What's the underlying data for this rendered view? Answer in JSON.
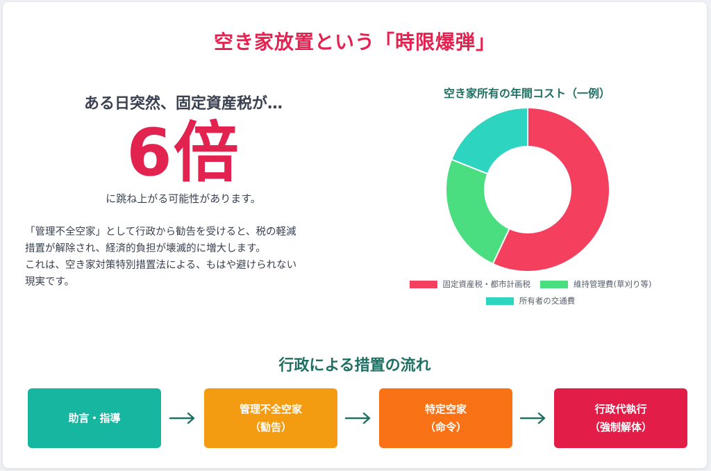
{
  "title": "空き家放置という「時限爆弾」",
  "headline": {
    "lead": "ある日突然、固定資産税が…",
    "multiplier": "6倍",
    "sub": "に跳ね上がる可能性があります。",
    "description": [
      "「管理不全空家」として行政から勧告を受けると、税の軽減",
      "措置が解除され、経済的負担が壊滅的に増大します。",
      "これは、空き家対策特別措置法による、もはや避けられない",
      "現実です。"
    ]
  },
  "chart_data": {
    "type": "pie",
    "title": "空き家所有の年間コスト（一例）",
    "categories": [
      "固定資産税・都市計画税",
      "維持管理費(草刈り等)",
      "所有者の交通費"
    ],
    "values": [
      57,
      24,
      19
    ],
    "colors": [
      "#f43f5e",
      "#4ade80",
      "#2dd4bf"
    ],
    "donut": true,
    "legend_position": "bottom"
  },
  "flow": {
    "title": "行政による措置の流れ",
    "steps": [
      {
        "label": "助言・指導",
        "sub": "",
        "color": "#16b6a0"
      },
      {
        "label": "管理不全空家",
        "sub": "（勧告）",
        "color": "#f39c12"
      },
      {
        "label": "特定空家",
        "sub": "（命令）",
        "color": "#f97316"
      },
      {
        "label": "行政代執行",
        "sub": "（強制解体）",
        "color": "#e11d48"
      }
    ],
    "arrow_icon": "arrow-right-icon",
    "arrow_color": "#1f6f63"
  },
  "accent_color": "#e3234f"
}
